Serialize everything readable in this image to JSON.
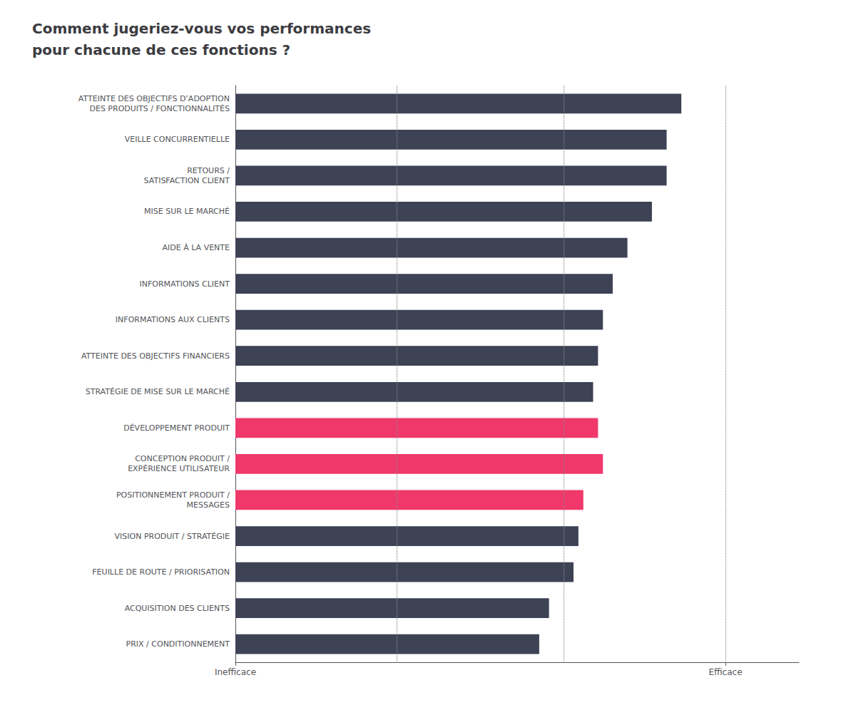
{
  "chart_data": {
    "type": "bar",
    "orientation": "horizontal",
    "title": "Comment jugeriez-vous vos performances\npour chacune de ces fonctions ?",
    "categories": [
      "ATTEINTE DES OBJECTIFS D’ADOPTION\nDES PRODUITS / FONCTIONNALITÉS",
      "VEILLE CONCURRENTIELLE",
      "RETOURS /\nSATISFACTION CLIENT",
      "MISE SUR LE MARCHÉ",
      "AIDE À LA VENTE",
      "INFORMATIONS CLIENT",
      "INFORMATIONS AUX CLIENTS",
      "ATTEINTE DES OBJECTIFS FINANCIERS",
      "STRATÉGIE DE MISE SUR LE MARCHÉ",
      "DÉVELOPPEMENT PRODUIT",
      "CONCEPTION PRODUIT /\nEXPÉRIENCE UTILISATEUR",
      "POSITIONNEMENT PRODUIT /\nMESSAGES",
      "VISION PRODUIT / STRATÉGIE",
      "FEUILLE DE ROUTE / PRIORISATION",
      "ACQUISITION DES CLIENTS",
      "PRIX / CONDITIONNEMENT"
    ],
    "values": [
      0.91,
      0.88,
      0.88,
      0.85,
      0.8,
      0.77,
      0.75,
      0.74,
      0.73,
      0.74,
      0.75,
      0.71,
      0.7,
      0.69,
      0.64,
      0.62
    ],
    "colors": [
      "#3d4255",
      "#3d4255",
      "#3d4255",
      "#3d4255",
      "#3d4255",
      "#3d4255",
      "#3d4255",
      "#3d4255",
      "#3d4255",
      "#f0386b",
      "#f0386b",
      "#f0386b",
      "#3d4255",
      "#3d4255",
      "#3d4255",
      "#3d4255"
    ],
    "xlim": [
      0,
      1.15
    ],
    "xticks": [
      {
        "value": 0,
        "label": "Inefficace"
      },
      {
        "value": 1.0,
        "label": "Efficace"
      }
    ],
    "reference_lines": [
      0.333,
      0.667,
      1.0
    ],
    "grid": false
  }
}
